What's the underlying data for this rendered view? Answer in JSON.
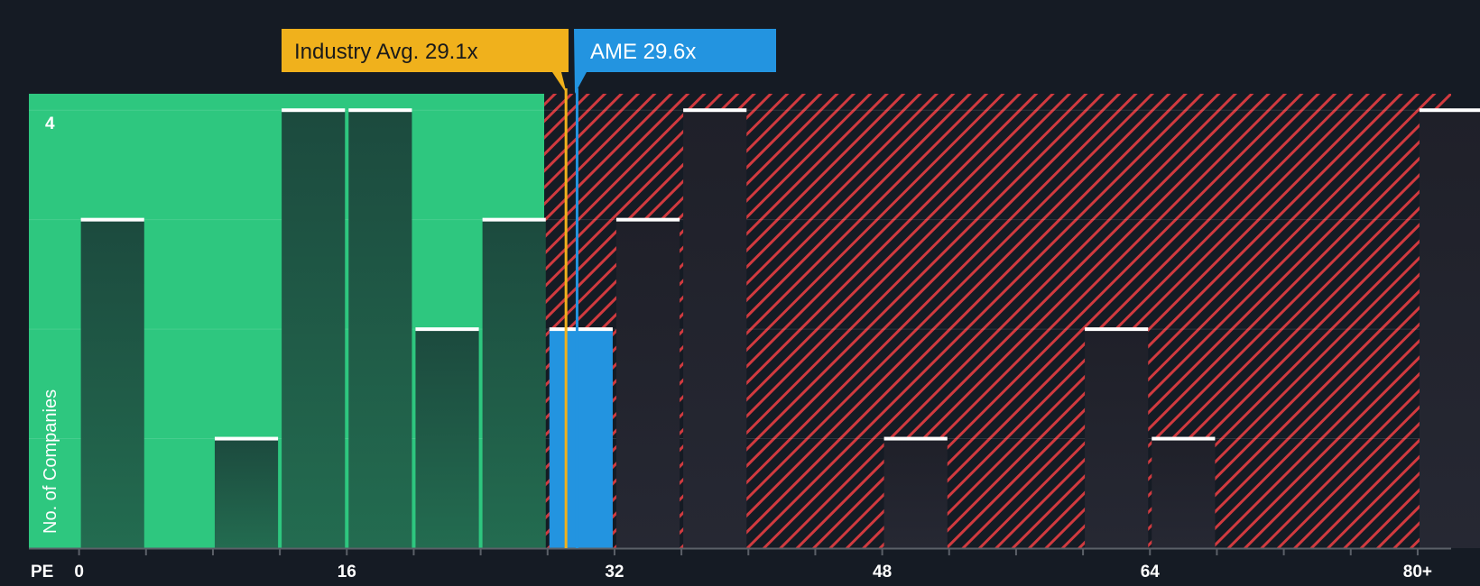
{
  "chart_data": {
    "type": "bar",
    "title": "",
    "xlabel": "PE",
    "ylabel": "No. of Companies",
    "xlim": [
      -3,
      82
    ],
    "ylim": [
      0,
      4.15
    ],
    "x_ticks": [
      {
        "value": 0,
        "label": "0"
      },
      {
        "value": 16,
        "label": "16"
      },
      {
        "value": 32,
        "label": "32"
      },
      {
        "value": 48,
        "label": "48"
      },
      {
        "value": 64,
        "label": "64"
      },
      {
        "value": 80,
        "label": "80+"
      }
    ],
    "y_tick_labels": [
      {
        "value": 4,
        "label": "4"
      }
    ],
    "bin_width": 4,
    "bins": [
      {
        "start": 0,
        "count": 3
      },
      {
        "start": 8,
        "count": 1
      },
      {
        "start": 12,
        "count": 4
      },
      {
        "start": 16,
        "count": 4
      },
      {
        "start": 20,
        "count": 2
      },
      {
        "start": 24,
        "count": 3
      },
      {
        "start": 28,
        "count": 2,
        "highlight": true
      },
      {
        "start": 32,
        "count": 3
      },
      {
        "start": 36,
        "count": 4
      },
      {
        "start": 48,
        "count": 1
      },
      {
        "start": 60,
        "count": 2
      },
      {
        "start": 64,
        "count": 1
      },
      {
        "start": 80,
        "count": 4
      }
    ],
    "industry_avg": {
      "value": 29.1,
      "label": "Industry Avg. 29.1x"
    },
    "company": {
      "value": 29.6,
      "label": "AME 29.6x"
    },
    "fair_region_end": 27.8,
    "colors": {
      "background": "#151b24",
      "fair_region": "#2ec77f",
      "fair_bar": "#1f4a3f",
      "over_region_stripe": "#d13a3f",
      "over_bar": "#232530",
      "highlight_bar": "#2394e0",
      "industry_line": "#f0b11c",
      "company_line": "#2394e0",
      "bar_cap": "#ffffff",
      "axis": "#5b6068"
    }
  }
}
